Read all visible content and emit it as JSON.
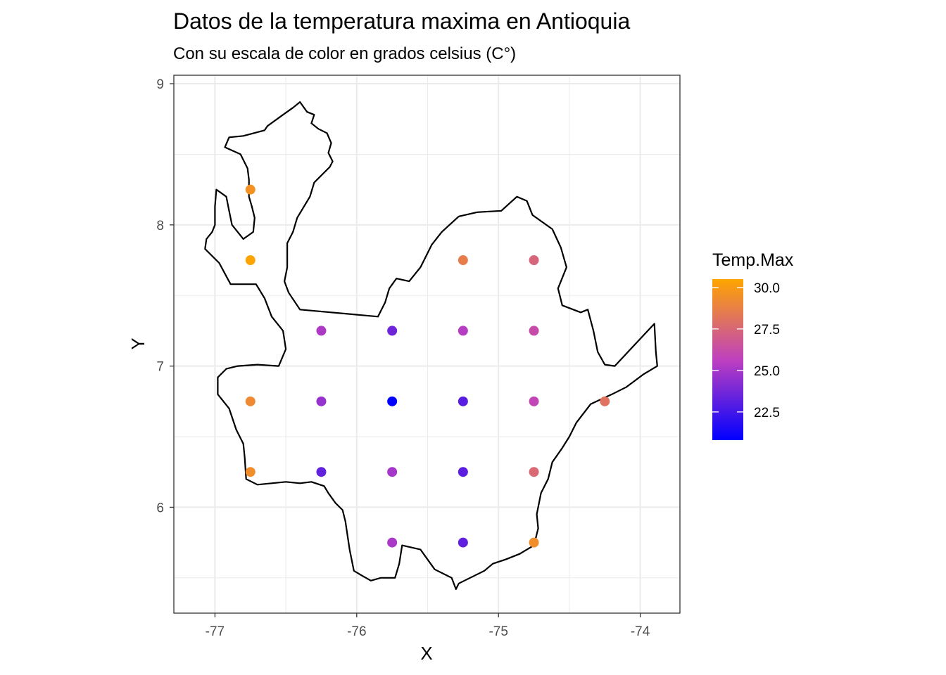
{
  "chart_data": {
    "type": "scatter",
    "title": "Datos de la temperatura maxima en Antioquia",
    "subtitle": "Con su escala de color en grados celsius (C°)",
    "xlabel": "X",
    "ylabel": "Y",
    "xlim": [
      -77.29,
      -73.72
    ],
    "ylim": [
      5.25,
      9.06
    ],
    "x_ticks": [
      -77,
      -76,
      -75,
      -74
    ],
    "y_ticks": [
      6,
      7,
      8,
      9
    ],
    "grid": true,
    "legend": {
      "title": "Temp.Max",
      "position": "right",
      "range": [
        20.8,
        30.5
      ],
      "ticks": [
        "30.0",
        "27.5",
        "25.0",
        "22.5"
      ],
      "tick_values": [
        30.0,
        27.5,
        25.0,
        22.5
      ],
      "low_color": "#0000FF",
      "high_color": "#FFA500"
    },
    "points": [
      {
        "x": -76.75,
        "y": 8.25,
        "value": 29.6
      },
      {
        "x": -76.75,
        "y": 7.75,
        "value": 30.4
      },
      {
        "x": -75.25,
        "y": 7.75,
        "value": 28.6
      },
      {
        "x": -74.75,
        "y": 7.75,
        "value": 27.4
      },
      {
        "x": -76.25,
        "y": 7.25,
        "value": 25.2
      },
      {
        "x": -75.75,
        "y": 7.25,
        "value": 23.6
      },
      {
        "x": -75.25,
        "y": 7.25,
        "value": 25.4
      },
      {
        "x": -74.75,
        "y": 7.25,
        "value": 26.2
      },
      {
        "x": -76.75,
        "y": 6.75,
        "value": 29.2
      },
      {
        "x": -76.25,
        "y": 6.75,
        "value": 24.6
      },
      {
        "x": -75.75,
        "y": 6.75,
        "value": 20.8
      },
      {
        "x": -75.25,
        "y": 6.75,
        "value": 23.0
      },
      {
        "x": -74.75,
        "y": 6.75,
        "value": 25.9
      },
      {
        "x": -74.25,
        "y": 6.75,
        "value": 28.1
      },
      {
        "x": -76.75,
        "y": 6.25,
        "value": 29.4
      },
      {
        "x": -76.25,
        "y": 6.25,
        "value": 23.3
      },
      {
        "x": -75.75,
        "y": 6.25,
        "value": 25.0
      },
      {
        "x": -75.25,
        "y": 6.25,
        "value": 23.1
      },
      {
        "x": -74.75,
        "y": 6.25,
        "value": 27.6
      },
      {
        "x": -75.75,
        "y": 5.75,
        "value": 25.1
      },
      {
        "x": -75.25,
        "y": 5.75,
        "value": 23.2
      },
      {
        "x": -74.75,
        "y": 5.75,
        "value": 29.4
      }
    ],
    "boundary": [
      [
        -76.4,
        8.87
      ],
      [
        -76.35,
        8.8
      ],
      [
        -76.3,
        8.78
      ],
      [
        -76.32,
        8.72
      ],
      [
        -76.27,
        8.68
      ],
      [
        -76.21,
        8.65
      ],
      [
        -76.18,
        8.58
      ],
      [
        -76.2,
        8.51
      ],
      [
        -76.17,
        8.45
      ],
      [
        -76.19,
        8.41
      ],
      [
        -76.3,
        8.3
      ],
      [
        -76.33,
        8.2
      ],
      [
        -76.42,
        8.05
      ],
      [
        -76.45,
        7.95
      ],
      [
        -76.49,
        7.87
      ],
      [
        -76.49,
        7.7
      ],
      [
        -76.51,
        7.6
      ],
      [
        -76.48,
        7.52
      ],
      [
        -76.4,
        7.4
      ],
      [
        -75.85,
        7.35
      ],
      [
        -75.8,
        7.45
      ],
      [
        -75.77,
        7.55
      ],
      [
        -75.72,
        7.62
      ],
      [
        -75.63,
        7.6
      ],
      [
        -75.55,
        7.7
      ],
      [
        -75.47,
        7.86
      ],
      [
        -75.4,
        7.95
      ],
      [
        -75.28,
        8.06
      ],
      [
        -75.15,
        8.09
      ],
      [
        -74.98,
        8.1
      ],
      [
        -74.87,
        8.2
      ],
      [
        -74.8,
        8.17
      ],
      [
        -74.76,
        8.07
      ],
      [
        -74.62,
        7.97
      ],
      [
        -74.56,
        7.84
      ],
      [
        -74.52,
        7.7
      ],
      [
        -74.58,
        7.55
      ],
      [
        -74.55,
        7.43
      ],
      [
        -74.42,
        7.38
      ],
      [
        -74.37,
        7.4
      ],
      [
        -74.33,
        7.25
      ],
      [
        -74.3,
        7.1
      ],
      [
        -74.25,
        7.01
      ],
      [
        -74.18,
        7.0
      ],
      [
        -73.9,
        7.3
      ],
      [
        -73.89,
        7.1
      ],
      [
        -73.88,
        7.0
      ],
      [
        -73.98,
        6.94
      ],
      [
        -74.1,
        6.85
      ],
      [
        -74.2,
        6.8
      ],
      [
        -74.35,
        6.73
      ],
      [
        -74.45,
        6.6
      ],
      [
        -74.5,
        6.5
      ],
      [
        -74.55,
        6.42
      ],
      [
        -74.62,
        6.32
      ],
      [
        -74.65,
        6.2
      ],
      [
        -74.7,
        6.1
      ],
      [
        -74.73,
        5.95
      ],
      [
        -74.72,
        5.85
      ],
      [
        -74.75,
        5.73
      ],
      [
        -74.85,
        5.67
      ],
      [
        -74.95,
        5.63
      ],
      [
        -75.04,
        5.6
      ],
      [
        -75.1,
        5.55
      ],
      [
        -75.2,
        5.5
      ],
      [
        -75.28,
        5.46
      ],
      [
        -75.3,
        5.42
      ],
      [
        -75.33,
        5.5
      ],
      [
        -75.45,
        5.56
      ],
      [
        -75.55,
        5.7
      ],
      [
        -75.68,
        5.73
      ],
      [
        -75.7,
        5.6
      ],
      [
        -75.73,
        5.5
      ],
      [
        -75.83,
        5.5
      ],
      [
        -75.9,
        5.48
      ],
      [
        -75.97,
        5.52
      ],
      [
        -76.02,
        5.55
      ],
      [
        -76.05,
        5.7
      ],
      [
        -76.08,
        5.9
      ],
      [
        -76.1,
        5.98
      ],
      [
        -76.15,
        6.03
      ],
      [
        -76.2,
        6.1
      ],
      [
        -76.23,
        6.15
      ],
      [
        -76.32,
        6.18
      ],
      [
        -76.4,
        6.17
      ],
      [
        -76.5,
        6.18
      ],
      [
        -76.6,
        6.17
      ],
      [
        -76.7,
        6.16
      ],
      [
        -76.78,
        6.2
      ],
      [
        -76.79,
        6.35
      ],
      [
        -76.8,
        6.45
      ],
      [
        -76.85,
        6.55
      ],
      [
        -76.9,
        6.7
      ],
      [
        -76.98,
        6.8
      ],
      [
        -76.98,
        6.92
      ],
      [
        -76.92,
        6.98
      ],
      [
        -76.84,
        7.0
      ],
      [
        -76.7,
        7.01
      ],
      [
        -76.55,
        7.0
      ],
      [
        -76.5,
        7.12
      ],
      [
        -76.52,
        7.25
      ],
      [
        -76.6,
        7.35
      ],
      [
        -76.65,
        7.48
      ],
      [
        -76.71,
        7.58
      ],
      [
        -76.89,
        7.58
      ],
      [
        -76.97,
        7.73
      ],
      [
        -77.07,
        7.83
      ],
      [
        -77.06,
        7.9
      ],
      [
        -77.02,
        7.95
      ],
      [
        -77.0,
        8.0
      ],
      [
        -77.0,
        8.13
      ],
      [
        -76.99,
        8.25
      ],
      [
        -76.92,
        8.2
      ],
      [
        -76.9,
        8.1
      ],
      [
        -76.88,
        8.0
      ],
      [
        -76.8,
        7.9
      ],
      [
        -76.73,
        7.95
      ],
      [
        -76.72,
        8.05
      ],
      [
        -76.74,
        8.13
      ],
      [
        -76.76,
        8.2
      ],
      [
        -76.76,
        8.32
      ],
      [
        -76.77,
        8.4
      ],
      [
        -76.82,
        8.5
      ],
      [
        -76.93,
        8.55
      ],
      [
        -76.9,
        8.62
      ],
      [
        -76.8,
        8.63
      ],
      [
        -76.65,
        8.67
      ],
      [
        -76.63,
        8.7
      ],
      [
        -76.52,
        8.78
      ],
      [
        -76.45,
        8.83
      ],
      [
        -76.4,
        8.87
      ]
    ]
  }
}
